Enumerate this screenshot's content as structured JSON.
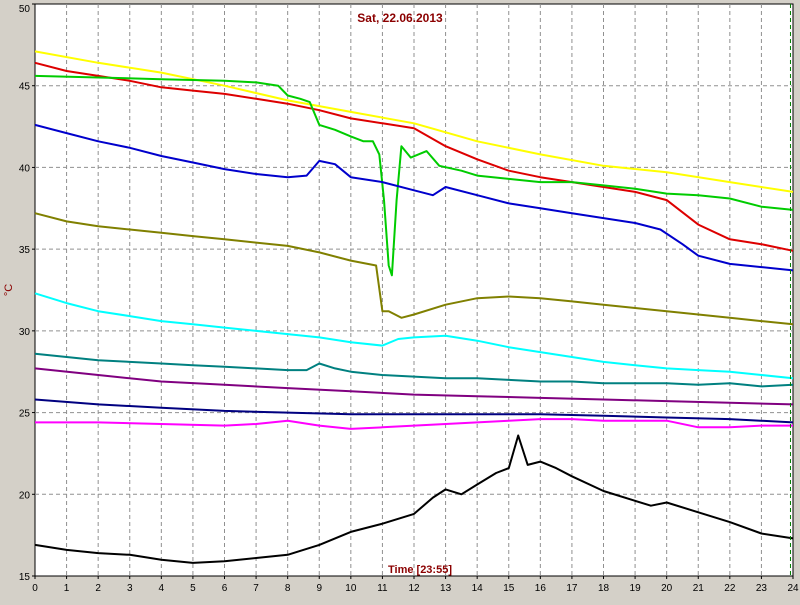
{
  "chart_data": {
    "type": "line",
    "title": "Sat, 22.06.2013",
    "xlabel": "Time [23:55]",
    "ylabel": "°C",
    "xlim": [
      0,
      24
    ],
    "ylim": [
      15,
      50
    ],
    "x_ticks": [
      "0",
      "1",
      "2",
      "3",
      "4",
      "5",
      "6",
      "7",
      "8",
      "9",
      "10",
      "11",
      "12",
      "13",
      "14",
      "15",
      "16",
      "17",
      "18",
      "19",
      "20",
      "21",
      "22",
      "23",
      "24"
    ],
    "y_ticks": [
      "15",
      "20",
      "25",
      "30",
      "35",
      "40",
      "45",
      "50"
    ],
    "grid": true,
    "current_time_marker": 23.92,
    "series": [
      {
        "color": "#ffff00",
        "points": [
          [
            0,
            47.1
          ],
          [
            2,
            46.4
          ],
          [
            4,
            45.8
          ],
          [
            6,
            45.0
          ],
          [
            8,
            44.1
          ],
          [
            10,
            43.4
          ],
          [
            12,
            42.7
          ],
          [
            14,
            41.6
          ],
          [
            16,
            40.8
          ],
          [
            18,
            40.1
          ],
          [
            20,
            39.7
          ],
          [
            22,
            39.1
          ],
          [
            24,
            38.5
          ]
        ]
      },
      {
        "color": "#dd0000",
        "points": [
          [
            0,
            46.4
          ],
          [
            1,
            45.9
          ],
          [
            2,
            45.6
          ],
          [
            3,
            45.3
          ],
          [
            4,
            44.9
          ],
          [
            5,
            44.7
          ],
          [
            6,
            44.5
          ],
          [
            7,
            44.2
          ],
          [
            8,
            43.9
          ],
          [
            9,
            43.5
          ],
          [
            10,
            43.0
          ],
          [
            11,
            42.7
          ],
          [
            12,
            42.4
          ],
          [
            13,
            41.3
          ],
          [
            14,
            40.5
          ],
          [
            15,
            39.8
          ],
          [
            16,
            39.4
          ],
          [
            17,
            39.1
          ],
          [
            18,
            38.8
          ],
          [
            19,
            38.5
          ],
          [
            20,
            38.0
          ],
          [
            21,
            36.5
          ],
          [
            22,
            35.6
          ],
          [
            23,
            35.3
          ],
          [
            24,
            34.9
          ]
        ]
      },
      {
        "color": "#00cc00",
        "points": [
          [
            0,
            45.6
          ],
          [
            2,
            45.5
          ],
          [
            4,
            45.4
          ],
          [
            6,
            45.3
          ],
          [
            7,
            45.2
          ],
          [
            7.7,
            45.0
          ],
          [
            8.0,
            44.4
          ],
          [
            8.4,
            44.2
          ],
          [
            8.7,
            44.0
          ],
          [
            9.0,
            42.6
          ],
          [
            9.5,
            42.3
          ],
          [
            10.0,
            41.9
          ],
          [
            10.4,
            41.6
          ],
          [
            10.7,
            41.6
          ],
          [
            10.9,
            40.8
          ],
          [
            11.05,
            38.0
          ],
          [
            11.2,
            34.0
          ],
          [
            11.3,
            33.4
          ],
          [
            11.45,
            38.0
          ],
          [
            11.6,
            41.3
          ],
          [
            11.9,
            40.6
          ],
          [
            12.4,
            41.0
          ],
          [
            12.8,
            40.1
          ],
          [
            13.5,
            39.8
          ],
          [
            14,
            39.5
          ],
          [
            15,
            39.3
          ],
          [
            16,
            39.1
          ],
          [
            17,
            39.1
          ],
          [
            18,
            38.9
          ],
          [
            19,
            38.7
          ],
          [
            20,
            38.4
          ],
          [
            21,
            38.3
          ],
          [
            22,
            38.1
          ],
          [
            23,
            37.6
          ],
          [
            24,
            37.4
          ]
        ]
      },
      {
        "color": "#0000cc",
        "points": [
          [
            0,
            42.6
          ],
          [
            1,
            42.1
          ],
          [
            2,
            41.6
          ],
          [
            3,
            41.2
          ],
          [
            4,
            40.7
          ],
          [
            5,
            40.3
          ],
          [
            6,
            39.9
          ],
          [
            7,
            39.6
          ],
          [
            8,
            39.4
          ],
          [
            8.6,
            39.5
          ],
          [
            9,
            40.4
          ],
          [
            9.5,
            40.2
          ],
          [
            10,
            39.4
          ],
          [
            11,
            39.1
          ],
          [
            12,
            38.6
          ],
          [
            12.6,
            38.3
          ],
          [
            13,
            38.8
          ],
          [
            14,
            38.3
          ],
          [
            15,
            37.8
          ],
          [
            16,
            37.5
          ],
          [
            17,
            37.2
          ],
          [
            18,
            36.9
          ],
          [
            19,
            36.6
          ],
          [
            19.8,
            36.2
          ],
          [
            20.5,
            35.3
          ],
          [
            21,
            34.6
          ],
          [
            22,
            34.1
          ],
          [
            23,
            33.9
          ],
          [
            24,
            33.7
          ]
        ]
      },
      {
        "color": "#808000",
        "points": [
          [
            0,
            37.2
          ],
          [
            1,
            36.7
          ],
          [
            2,
            36.4
          ],
          [
            3,
            36.2
          ],
          [
            4,
            36.0
          ],
          [
            5,
            35.8
          ],
          [
            6,
            35.6
          ],
          [
            7,
            35.4
          ],
          [
            8,
            35.2
          ],
          [
            9,
            34.8
          ],
          [
            10,
            34.3
          ],
          [
            10.8,
            34.0
          ],
          [
            11.0,
            31.2
          ],
          [
            11.2,
            31.2
          ],
          [
            11.6,
            30.8
          ],
          [
            12,
            31.0
          ],
          [
            13,
            31.6
          ],
          [
            14,
            32.0
          ],
          [
            15,
            32.1
          ],
          [
            16,
            32.0
          ],
          [
            17,
            31.8
          ],
          [
            18,
            31.6
          ],
          [
            19,
            31.4
          ],
          [
            20,
            31.2
          ],
          [
            21,
            31.0
          ],
          [
            22,
            30.8
          ],
          [
            23,
            30.6
          ],
          [
            24,
            30.4
          ]
        ]
      },
      {
        "color": "#00ffff",
        "points": [
          [
            0,
            32.3
          ],
          [
            1,
            31.7
          ],
          [
            2,
            31.2
          ],
          [
            3,
            30.9
          ],
          [
            4,
            30.6
          ],
          [
            5,
            30.4
          ],
          [
            6,
            30.2
          ],
          [
            7,
            30.0
          ],
          [
            8,
            29.8
          ],
          [
            9,
            29.6
          ],
          [
            10,
            29.3
          ],
          [
            11,
            29.1
          ],
          [
            11.5,
            29.5
          ],
          [
            12,
            29.6
          ],
          [
            13,
            29.7
          ],
          [
            14,
            29.4
          ],
          [
            15,
            29.0
          ],
          [
            16,
            28.7
          ],
          [
            17,
            28.4
          ],
          [
            18,
            28.1
          ],
          [
            19,
            27.9
          ],
          [
            20,
            27.7
          ],
          [
            21,
            27.6
          ],
          [
            22,
            27.5
          ],
          [
            23,
            27.3
          ],
          [
            24,
            27.1
          ]
        ]
      },
      {
        "color": "#008080",
        "points": [
          [
            0,
            28.6
          ],
          [
            1,
            28.4
          ],
          [
            2,
            28.2
          ],
          [
            3,
            28.1
          ],
          [
            4,
            28.0
          ],
          [
            5,
            27.9
          ],
          [
            6,
            27.8
          ],
          [
            7,
            27.7
          ],
          [
            8,
            27.6
          ],
          [
            8.6,
            27.6
          ],
          [
            9,
            28.0
          ],
          [
            9.5,
            27.7
          ],
          [
            10,
            27.5
          ],
          [
            11,
            27.3
          ],
          [
            12,
            27.2
          ],
          [
            13,
            27.1
          ],
          [
            14,
            27.1
          ],
          [
            15,
            27.0
          ],
          [
            16,
            26.9
          ],
          [
            17,
            26.9
          ],
          [
            18,
            26.8
          ],
          [
            19,
            26.8
          ],
          [
            20,
            26.8
          ],
          [
            21,
            26.7
          ],
          [
            22,
            26.8
          ],
          [
            23,
            26.6
          ],
          [
            24,
            26.7
          ]
        ]
      },
      {
        "color": "#800080",
        "points": [
          [
            0,
            27.7
          ],
          [
            2,
            27.3
          ],
          [
            4,
            26.9
          ],
          [
            6,
            26.7
          ],
          [
            8,
            26.5
          ],
          [
            10,
            26.3
          ],
          [
            12,
            26.1
          ],
          [
            14,
            26.0
          ],
          [
            16,
            25.9
          ],
          [
            18,
            25.8
          ],
          [
            20,
            25.7
          ],
          [
            22,
            25.6
          ],
          [
            24,
            25.5
          ]
        ]
      },
      {
        "color": "#000080",
        "points": [
          [
            0,
            25.8
          ],
          [
            2,
            25.5
          ],
          [
            4,
            25.3
          ],
          [
            6,
            25.1
          ],
          [
            8,
            25.0
          ],
          [
            10,
            24.9
          ],
          [
            12,
            24.9
          ],
          [
            14,
            24.9
          ],
          [
            16,
            24.9
          ],
          [
            18,
            24.8
          ],
          [
            20,
            24.7
          ],
          [
            22,
            24.6
          ],
          [
            24,
            24.4
          ]
        ]
      },
      {
        "color": "#ff00ff",
        "points": [
          [
            0,
            24.4
          ],
          [
            2,
            24.4
          ],
          [
            4,
            24.3
          ],
          [
            6,
            24.2
          ],
          [
            7,
            24.3
          ],
          [
            8,
            24.5
          ],
          [
            9,
            24.2
          ],
          [
            10,
            24.0
          ],
          [
            11,
            24.1
          ],
          [
            12,
            24.2
          ],
          [
            13,
            24.3
          ],
          [
            14,
            24.4
          ],
          [
            15,
            24.5
          ],
          [
            16,
            24.6
          ],
          [
            17,
            24.6
          ],
          [
            18,
            24.5
          ],
          [
            19,
            24.5
          ],
          [
            20,
            24.5
          ],
          [
            21,
            24.1
          ],
          [
            22,
            24.1
          ],
          [
            23,
            24.2
          ],
          [
            24,
            24.2
          ]
        ]
      },
      {
        "color": "#000000",
        "points": [
          [
            0,
            16.9
          ],
          [
            1,
            16.6
          ],
          [
            2,
            16.4
          ],
          [
            3,
            16.3
          ],
          [
            4,
            16.0
          ],
          [
            5,
            15.8
          ],
          [
            6,
            15.9
          ],
          [
            7,
            16.1
          ],
          [
            8,
            16.3
          ],
          [
            9,
            16.9
          ],
          [
            10,
            17.7
          ],
          [
            11,
            18.2
          ],
          [
            12,
            18.8
          ],
          [
            12.6,
            19.8
          ],
          [
            13,
            20.3
          ],
          [
            13.5,
            20.0
          ],
          [
            14,
            20.6
          ],
          [
            14.6,
            21.3
          ],
          [
            15,
            21.6
          ],
          [
            15.3,
            23.6
          ],
          [
            15.6,
            21.8
          ],
          [
            16,
            22.0
          ],
          [
            16.5,
            21.6
          ],
          [
            17,
            21.1
          ],
          [
            18,
            20.2
          ],
          [
            19,
            19.6
          ],
          [
            19.5,
            19.3
          ],
          [
            20,
            19.5
          ],
          [
            21,
            18.9
          ],
          [
            22,
            18.3
          ],
          [
            23,
            17.6
          ],
          [
            24,
            17.3
          ]
        ]
      }
    ]
  }
}
